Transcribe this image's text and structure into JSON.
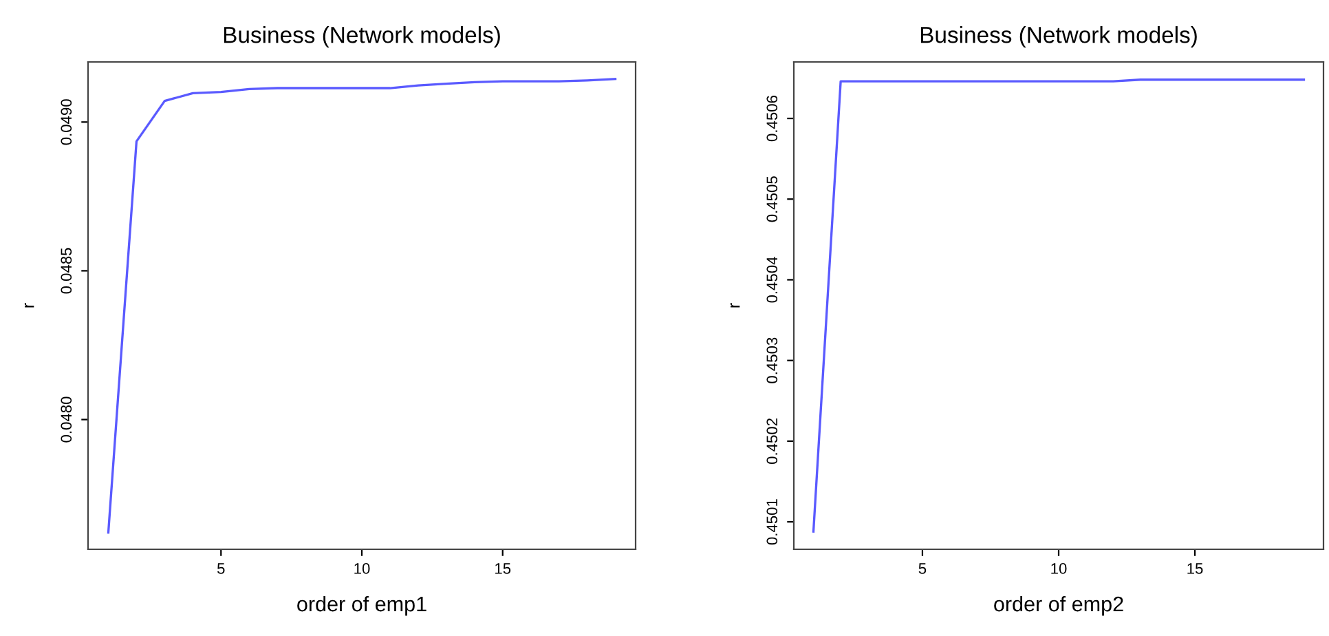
{
  "chart_data": [
    {
      "type": "line",
      "title": "Business (Network models)",
      "xlabel": "order of emp1",
      "ylabel": "r",
      "x": [
        1,
        2,
        3,
        4,
        5,
        6,
        7,
        8,
        9,
        10,
        11,
        12,
        13,
        14,
        15,
        16,
        17,
        18,
        19
      ],
      "series": [
        {
          "color": "#5a5aff",
          "values": [
            0.04762,
            0.048935,
            0.049071,
            0.049097,
            0.049101,
            0.049111,
            0.049114,
            0.049114,
            0.049114,
            0.049114,
            0.049114,
            0.049123,
            0.049129,
            0.049134,
            0.049137,
            0.049137,
            0.049137,
            0.04914,
            0.049145
          ]
        }
      ],
      "xlim": [
        0.28,
        19.72
      ],
      "xticks": [
        5,
        10,
        15
      ],
      "ylim": [
        0.047564,
        0.049202
      ],
      "yticks": [
        {
          "value": 0.048,
          "label": "0.0480"
        },
        0.0485,
        {
          "value": 0.049,
          "label": "0.0490"
        }
      ],
      "grid": false,
      "legend": false
    },
    {
      "type": "line",
      "title": "Business (Network models)",
      "xlabel": "order of emp2",
      "ylabel": "r",
      "x": [
        1,
        2,
        3,
        4,
        5,
        6,
        7,
        8,
        9,
        10,
        11,
        12,
        13,
        14,
        15,
        16,
        17,
        18,
        19
      ],
      "series": [
        {
          "color": "#5a5aff",
          "values": [
            0.450088,
            0.450646,
            0.450646,
            0.450646,
            0.450646,
            0.450646,
            0.450646,
            0.450646,
            0.450646,
            0.450646,
            0.450646,
            0.450646,
            0.450648,
            0.450648,
            0.450648,
            0.450648,
            0.450648,
            0.450648,
            0.450648
          ]
        }
      ],
      "xlim": [
        0.28,
        19.72
      ],
      "xticks": [
        5,
        10,
        15
      ],
      "ylim": [
        0.450066,
        0.45067
      ],
      "yticks": [
        0.4501,
        0.4502,
        0.4503,
        0.4504,
        0.4505,
        0.4506
      ],
      "grid": false,
      "legend": false
    }
  ]
}
